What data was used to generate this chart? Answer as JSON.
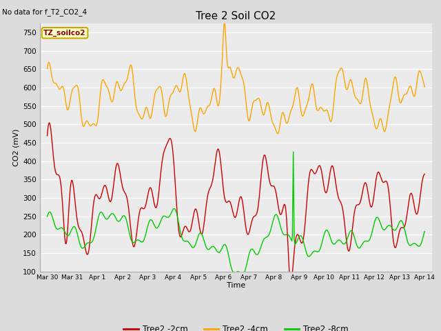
{
  "title": "Tree 2 Soil CO2",
  "no_data_text": "No data for f_T2_CO2_4",
  "ylabel": "CO2 (mV)",
  "xlabel": "Time",
  "ylim": [
    100,
    775
  ],
  "yticks": [
    100,
    150,
    200,
    250,
    300,
    350,
    400,
    450,
    500,
    550,
    600,
    650,
    700,
    750
  ],
  "legend_label": "TZ_soilco2",
  "line_colors": {
    "2cm": "#cc0000",
    "4cm": "#ffa500",
    "8cm": "#00cc00"
  },
  "legend_labels": [
    "Tree2 -2cm",
    "Tree2 -4cm",
    "Tree2 -8cm"
  ],
  "background_color": "#dcdcdc",
  "plot_bg": "#ebebeb",
  "xtick_labels": [
    "Mar 30",
    "Mar 31",
    "Apr 1",
    "Apr 2",
    "Apr 3",
    "Apr 4",
    "Apr 5",
    "Apr 6",
    "Apr 7",
    "Apr 8",
    "Apr 9",
    "Apr 10",
    "Apr 11",
    "Apr 12",
    "Apr 13",
    "Apr 14"
  ],
  "xtick_positions": [
    0,
    1,
    2,
    3,
    4,
    5,
    6,
    7,
    8,
    9,
    10,
    11,
    12,
    13,
    14,
    15
  ]
}
